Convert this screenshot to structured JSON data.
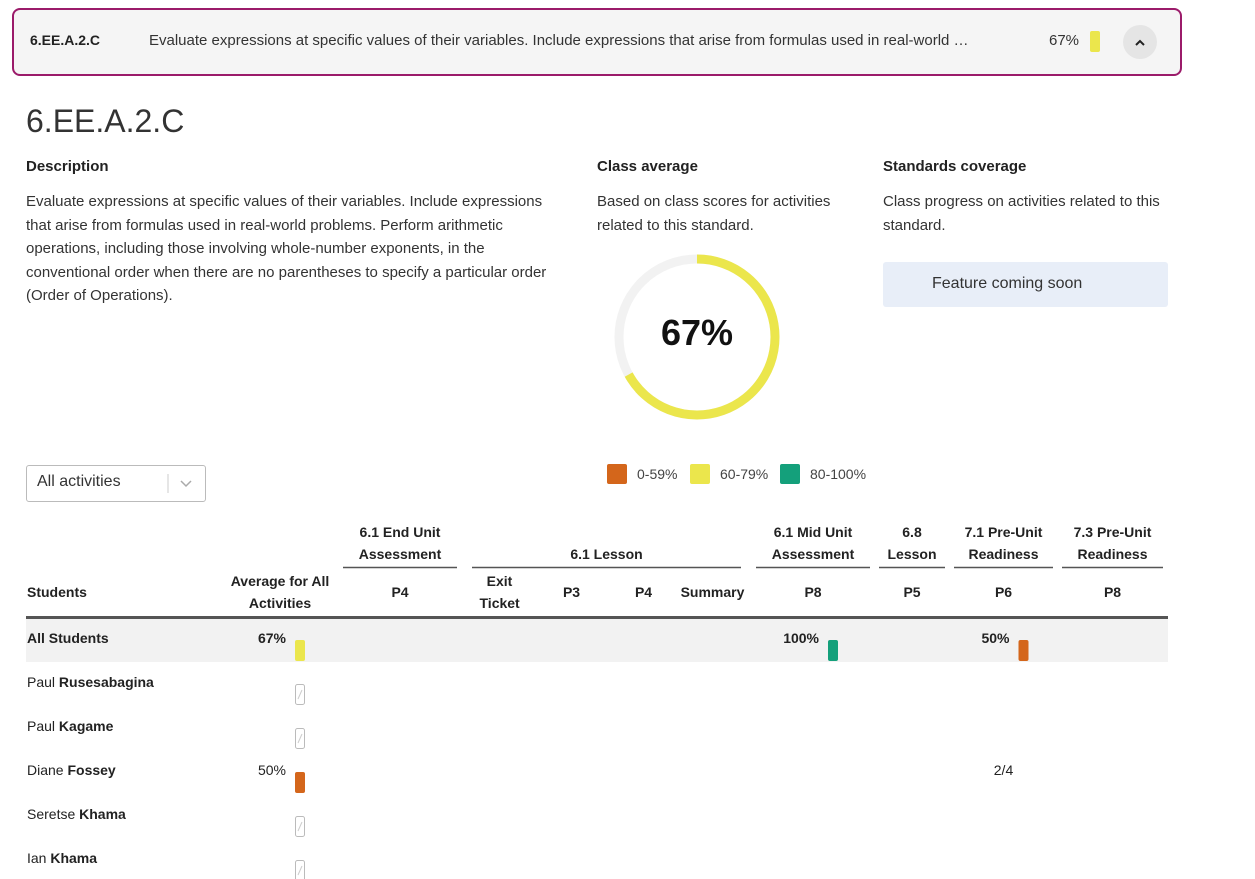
{
  "header": {
    "code": "6.EE.A.2.C",
    "description": "Evaluate expressions at specific values of their variables. Include expressions that arise from formulas used in real-world …",
    "score": "67%",
    "band": 1
  },
  "title": "6.EE.A.2.C",
  "description": {
    "heading": "Description",
    "text": "Evaluate expressions at specific values of their variables. Include expressions that arise from formulas used in real-world problems. Perform arithmetic operations, including those involving whole-number exponents, in the conventional order when there are no parentheses to specify a particular order (Order of Operations)."
  },
  "class_average": {
    "heading": "Class average",
    "text": "Based on class scores for activities related to this standard.",
    "value": 67,
    "label": "67%",
    "band": 1
  },
  "coverage": {
    "heading": "Standards coverage",
    "text": "Class progress on activities related to this standard.",
    "notice": "Feature coming soon"
  },
  "legend": [
    {
      "label": "0-59%",
      "color": "#d4661b"
    },
    {
      "label": "60-79%",
      "color": "#ebe64c"
    },
    {
      "label": "80-100%",
      "color": "#14a07b"
    }
  ],
  "filter": "All activities",
  "table": {
    "groups": [
      {
        "label": "6.1 End Unit Assessment",
        "span": 1
      },
      {
        "label": "6.1 Lesson",
        "span": 4
      },
      {
        "label": "6.1 Mid Unit Assessment",
        "span": 1
      },
      {
        "label": "6.8 Lesson",
        "span": 1
      },
      {
        "label": "7.1 Pre-Unit Readiness",
        "span": 1
      },
      {
        "label": "7.3 Pre-Unit Readiness",
        "span": 1
      }
    ],
    "columns": [
      "Students",
      "Average for All Activities",
      "P4",
      "Exit Ticket",
      "P3",
      "P4",
      "Summary",
      "P8",
      "P5",
      "P6",
      "P8"
    ],
    "rows": [
      {
        "name": "All Students",
        "cells": [
          {
            "text": "67%",
            "band": 1
          },
          null,
          null,
          null,
          null,
          null,
          {
            "text": "100%",
            "band": 2
          },
          null,
          {
            "text": "50%",
            "band": 0
          },
          null
        ]
      },
      {
        "first": "Paul",
        "last": "Rusesabagina",
        "cells": [
          {
            "band": null
          },
          null,
          null,
          null,
          null,
          null,
          null,
          null,
          null,
          null
        ]
      },
      {
        "first": "Paul",
        "last": "Kagame",
        "cells": [
          {
            "band": null
          },
          null,
          null,
          null,
          null,
          null,
          null,
          null,
          null,
          null
        ]
      },
      {
        "first": "Diane",
        "last": "Fossey",
        "cells": [
          {
            "text": "50%",
            "band": 0
          },
          null,
          null,
          null,
          null,
          null,
          null,
          null,
          "2/4",
          null
        ]
      },
      {
        "first": "Seretse",
        "last": "Khama",
        "cells": [
          {
            "band": null
          },
          null,
          null,
          null,
          null,
          null,
          null,
          null,
          null,
          null
        ]
      },
      {
        "first": "Ian",
        "last": "Khama",
        "cells": [
          {
            "band": null
          },
          null,
          null,
          null,
          null,
          null,
          null,
          null,
          null,
          null
        ]
      }
    ]
  }
}
